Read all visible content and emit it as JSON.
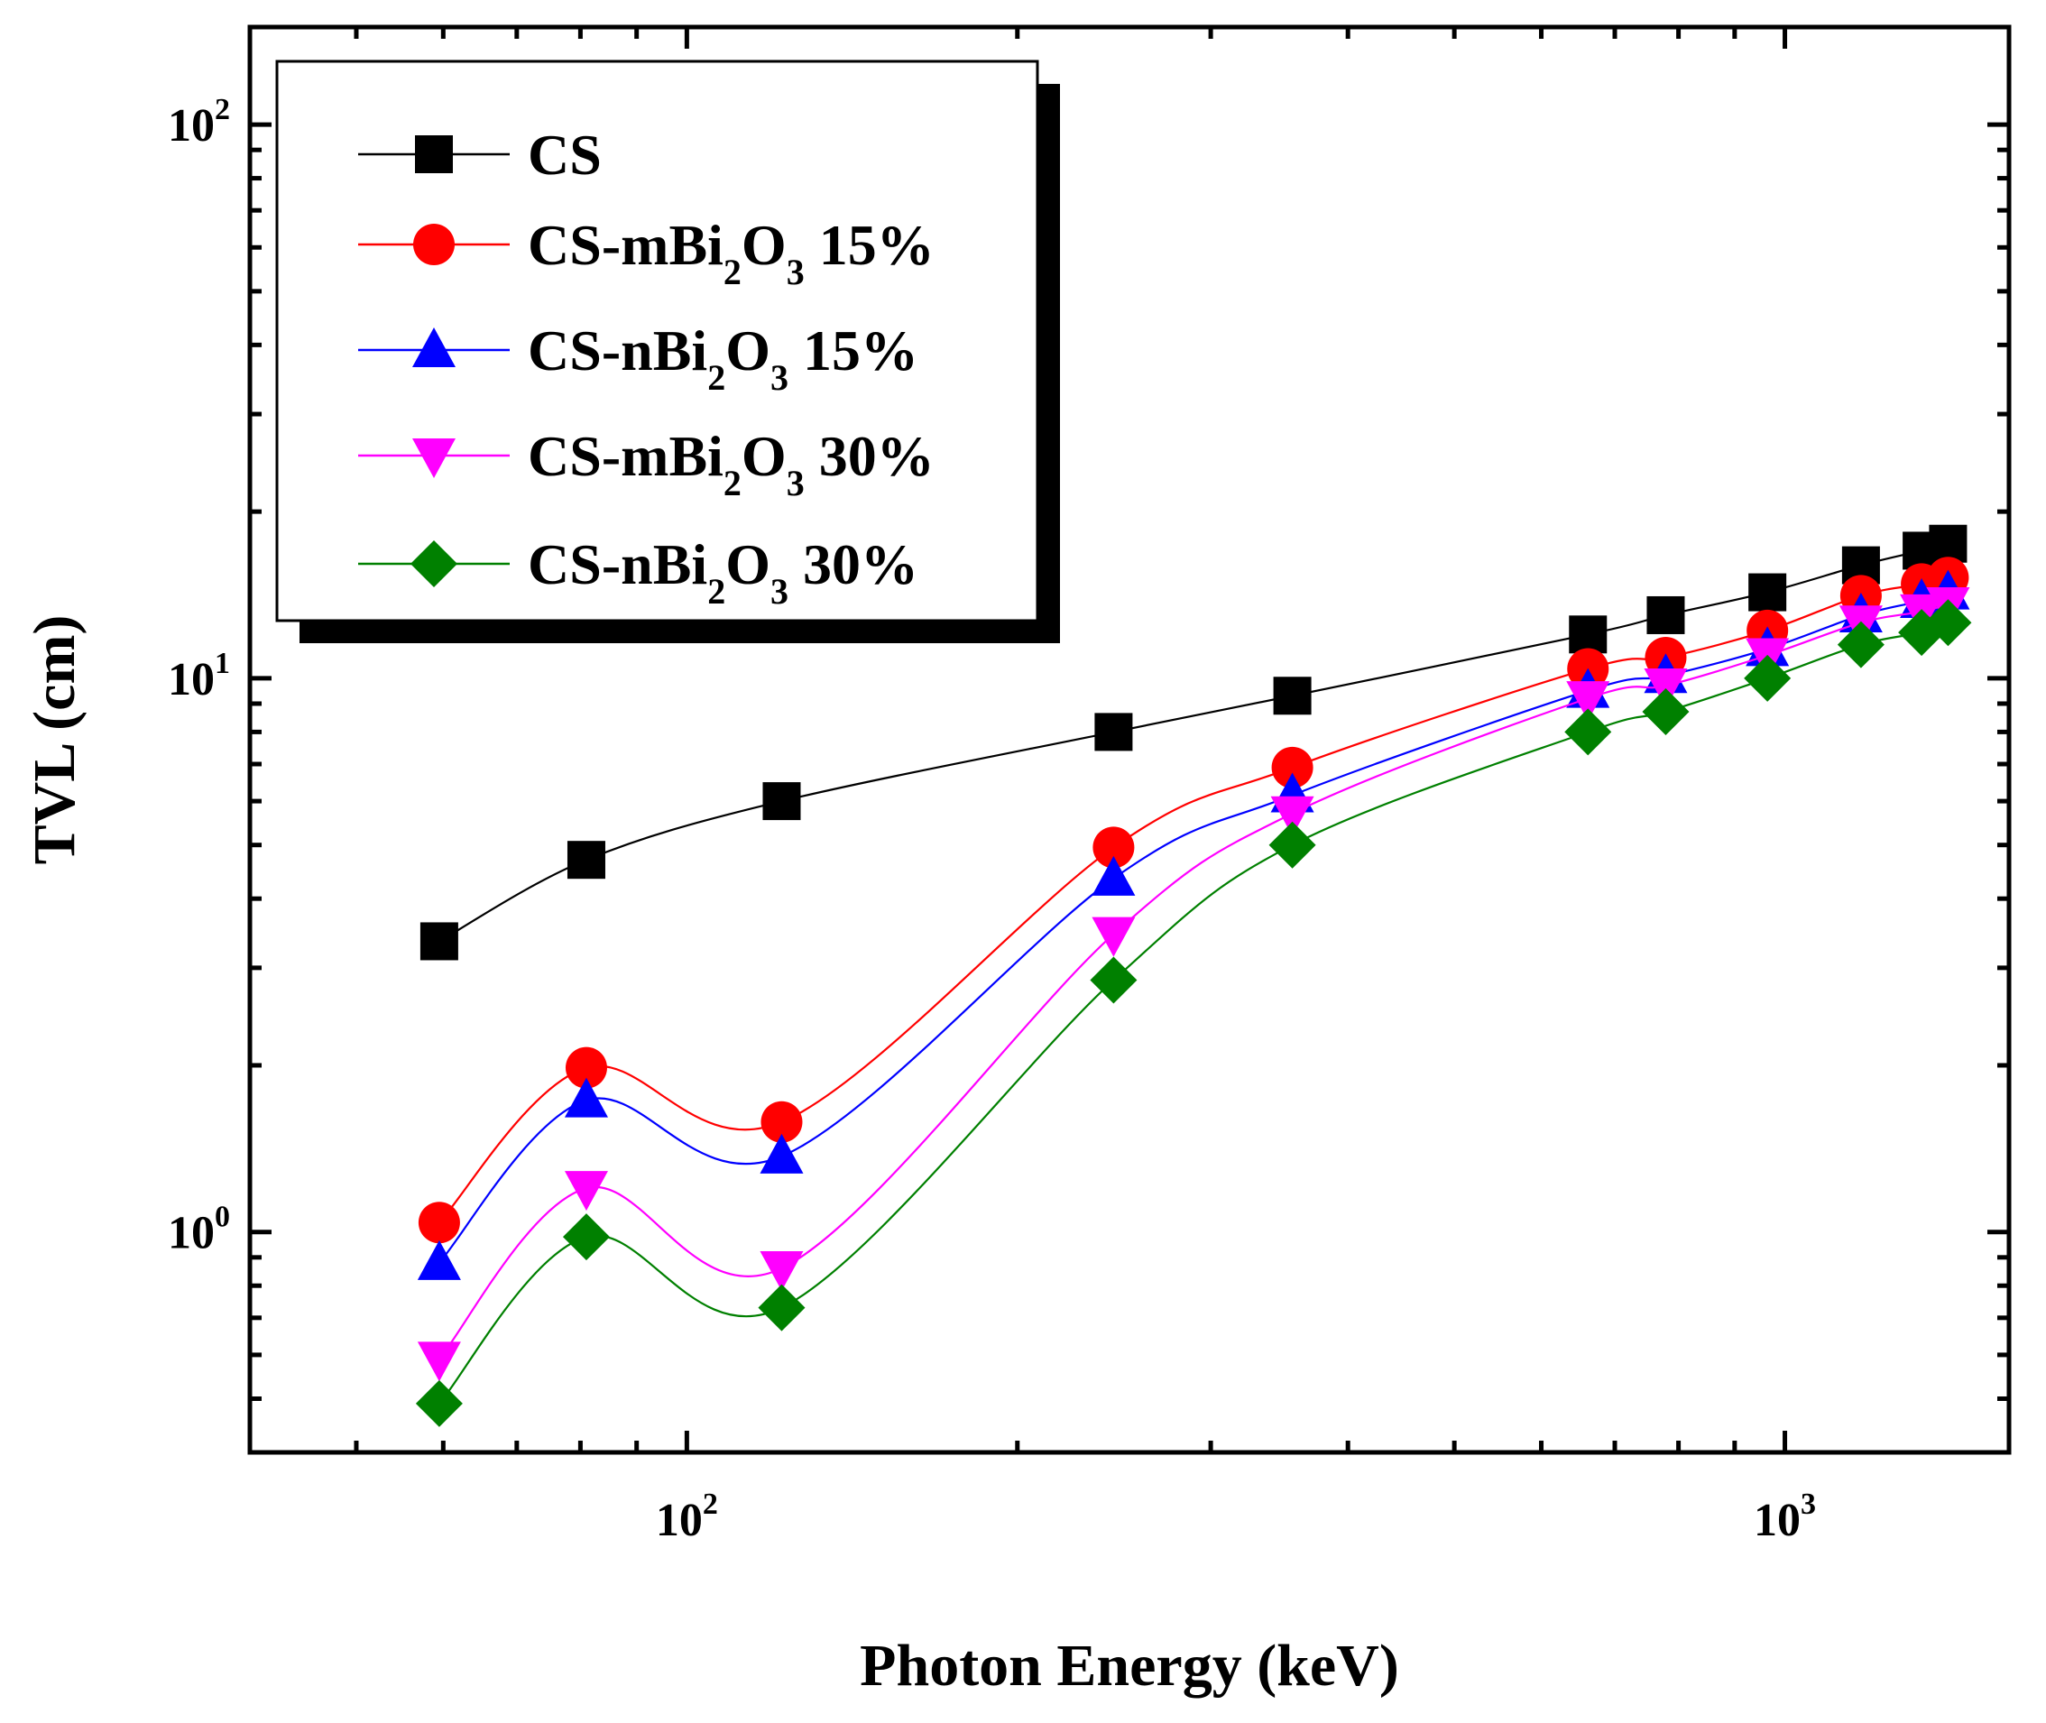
{
  "chart_data": {
    "type": "line",
    "title": "",
    "xlabel": "Photon Energy (keV)",
    "ylabel": "TVL (cm)",
    "xscale": "log",
    "yscale": "log",
    "xlim": [
      40,
      1600
    ],
    "ylim": [
      0.4,
      150
    ],
    "x_tick_labels": [
      {
        "base": "10",
        "exp": "2",
        "value": 100
      },
      {
        "base": "10",
        "exp": "3",
        "value": 1000
      }
    ],
    "y_tick_labels": [
      {
        "base": "10",
        "exp": "0",
        "value": 1
      },
      {
        "base": "10",
        "exp": "1",
        "value": 10
      },
      {
        "base": "10",
        "exp": "2",
        "value": 100
      }
    ],
    "legend_position": "top-left",
    "x": [
      59.5,
      81,
      122,
      244.7,
      356,
      661.7,
      778.9,
      964,
      1173,
      1332,
      1408
    ],
    "series": [
      {
        "name_main": "CS",
        "name_sub": "",
        "name_tail": "",
        "color": "#000000",
        "marker": "square",
        "values": [
          3.35,
          4.7,
          6.0,
          8.0,
          9.3,
          12.0,
          13.0,
          14.3,
          16.0,
          17.0,
          17.5
        ]
      },
      {
        "name_main": "CS-mBi",
        "name_sub": "2",
        "name_mid": "O",
        "name_sub2": "3",
        "name_tail": " 15%",
        "color": "#ff0000",
        "marker": "circle",
        "values": [
          1.04,
          1.98,
          1.58,
          4.95,
          6.9,
          10.4,
          10.9,
          12.2,
          14.1,
          14.8,
          15.2
        ]
      },
      {
        "name_main": "CS-nBi",
        "name_sub": "2",
        "name_mid": "O",
        "name_sub2": "3",
        "name_tail": " 15%",
        "color": "#0000ff",
        "marker": "triangle-up",
        "values": [
          0.88,
          1.73,
          1.37,
          4.35,
          6.15,
          9.5,
          10.1,
          11.3,
          13.0,
          13.8,
          14.3
        ]
      },
      {
        "name_main": "CS-mBi",
        "name_sub": "2",
        "name_mid": "O",
        "name_sub2": "3",
        "name_tail": " 30%",
        "color": "#ff00ff",
        "marker": "triangle-down",
        "values": [
          0.59,
          1.2,
          0.86,
          3.45,
          5.7,
          9.2,
          9.7,
          11.0,
          12.6,
          13.2,
          13.6
        ]
      },
      {
        "name_main": "CS-nBi",
        "name_sub": "2",
        "name_mid": "O",
        "name_sub2": "3",
        "name_tail": " 30%",
        "color": "#008000",
        "marker": "diamond",
        "values": [
          0.49,
          0.98,
          0.73,
          2.85,
          5.0,
          8.0,
          8.7,
          10.0,
          11.5,
          12.1,
          12.6
        ]
      }
    ]
  }
}
